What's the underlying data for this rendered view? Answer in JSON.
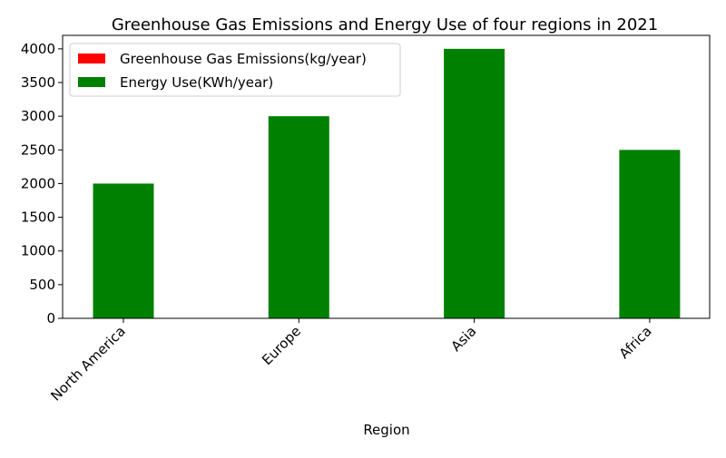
{
  "chart_data": {
    "type": "bar",
    "title": "Greenhouse Gas Emissions and Energy Use of four regions in 2021",
    "xlabel": "Region",
    "ylabel": "",
    "categories": [
      "North America",
      "Europe",
      "Asia",
      "Africa"
    ],
    "series": [
      {
        "name": "Greenhouse Gas Emissions(kg/year)",
        "values": [
          0,
          0,
          0,
          0
        ],
        "color": "#ff0000"
      },
      {
        "name": "Energy Use(KWh/year)",
        "values": [
          2000,
          3000,
          4000,
          2500
        ],
        "color": "#008000"
      }
    ],
    "ylim": [
      0,
      4200
    ],
    "yticks": [
      0,
      500,
      1000,
      1500,
      2000,
      2500,
      3000,
      3500,
      4000
    ],
    "grid": false,
    "legend_position": "top-left"
  }
}
